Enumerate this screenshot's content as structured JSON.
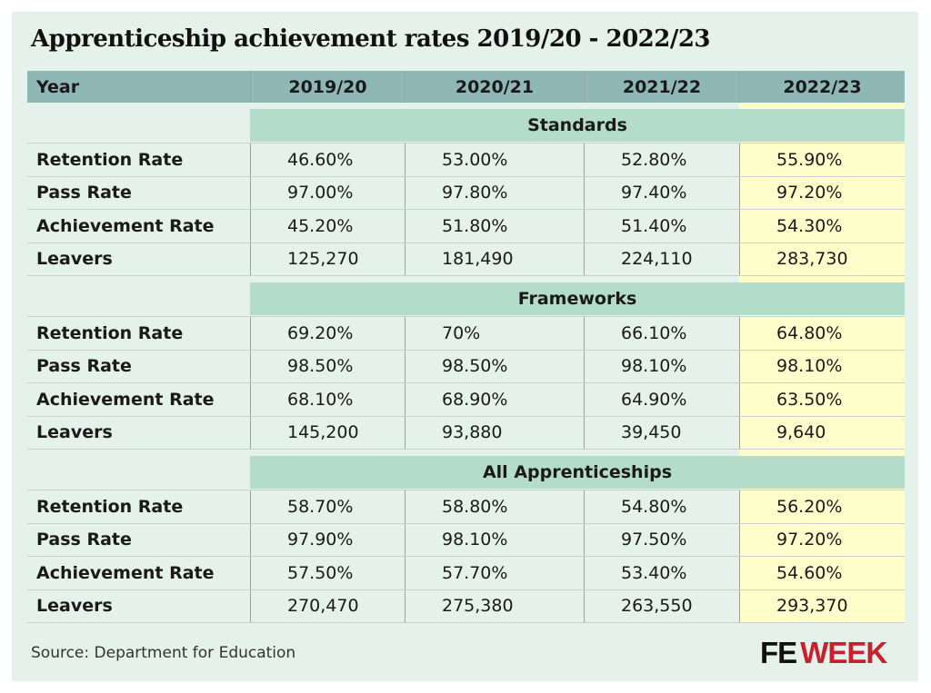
{
  "chart_data": {
    "type": "table",
    "title": "Apprenticeship achievement rates 2019/20 - 2022/23",
    "columns": [
      "Year",
      "2019/20",
      "2020/21",
      "2021/22",
      "2022/23"
    ],
    "highlight_column": "2022/23",
    "sections": [
      {
        "name": "Standards",
        "rows": [
          {
            "label": "Retention Rate",
            "values": [
              "46.60%",
              "53.00%",
              "52.80%",
              "55.90%"
            ]
          },
          {
            "label": "Pass Rate",
            "values": [
              "97.00%",
              "97.80%",
              "97.40%",
              "97.20%"
            ]
          },
          {
            "label": "Achievement Rate",
            "values": [
              "45.20%",
              "51.80%",
              "51.40%",
              "54.30%"
            ]
          },
          {
            "label": "Leavers",
            "values": [
              "125,270",
              "181,490",
              "224,110",
              "283,730"
            ]
          }
        ]
      },
      {
        "name": "Frameworks",
        "rows": [
          {
            "label": "Retention Rate",
            "values": [
              "69.20%",
              "70%",
              "66.10%",
              "64.80%"
            ]
          },
          {
            "label": "Pass Rate",
            "values": [
              "98.50%",
              "98.50%",
              "98.10%",
              "98.10%"
            ]
          },
          {
            "label": "Achievement Rate",
            "values": [
              "68.10%",
              "68.90%",
              "64.90%",
              "63.50%"
            ]
          },
          {
            "label": "Leavers",
            "values": [
              "145,200",
              "93,880",
              "39,450",
              "9,640"
            ]
          }
        ]
      },
      {
        "name": "All Apprenticeships",
        "rows": [
          {
            "label": "Retention Rate",
            "values": [
              "58.70%",
              "58.80%",
              "54.80%",
              "56.20%"
            ]
          },
          {
            "label": "Pass Rate",
            "values": [
              "97.90%",
              "98.10%",
              "97.50%",
              "97.20%"
            ]
          },
          {
            "label": "Achievement Rate",
            "values": [
              "57.50%",
              "57.70%",
              "53.40%",
              "54.60%"
            ]
          },
          {
            "label": "Leavers",
            "values": [
              "270,470",
              "275,380",
              "263,550",
              "293,370"
            ]
          }
        ]
      }
    ],
    "source": "Source: Department for Education"
  },
  "logo": {
    "part1": "FE",
    "part2": "WEEK"
  },
  "colors": {
    "header": "#8fb7b6",
    "section_band": "#b3dccb",
    "highlight": "#ffffcc",
    "background": "#e5f1eb",
    "logo_red": "#c8202e"
  }
}
